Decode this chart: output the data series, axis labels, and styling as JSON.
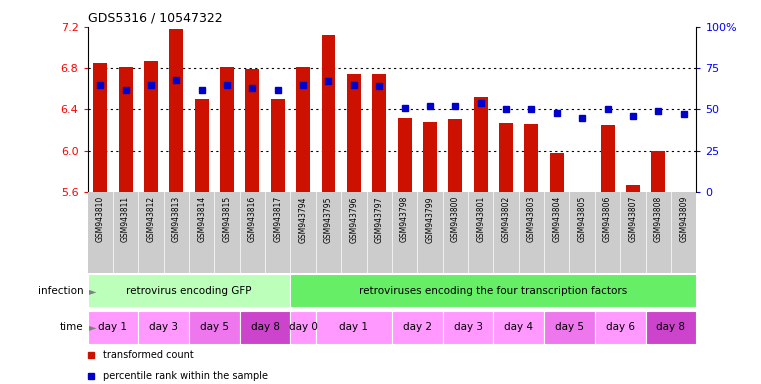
{
  "title": "GDS5316 / 10547322",
  "samples": [
    "GSM943810",
    "GSM943811",
    "GSM943812",
    "GSM943813",
    "GSM943814",
    "GSM943815",
    "GSM943816",
    "GSM943817",
    "GSM943794",
    "GSM943795",
    "GSM943796",
    "GSM943797",
    "GSM943798",
    "GSM943799",
    "GSM943800",
    "GSM943801",
    "GSM943802",
    "GSM943803",
    "GSM943804",
    "GSM943805",
    "GSM943806",
    "GSM943807",
    "GSM943808",
    "GSM943809"
  ],
  "transformed_count": [
    6.85,
    6.81,
    6.87,
    7.18,
    6.5,
    6.81,
    6.79,
    6.5,
    6.81,
    7.12,
    6.74,
    6.74,
    6.32,
    6.28,
    6.31,
    6.52,
    6.27,
    6.26,
    5.98,
    5.53,
    6.25,
    5.67,
    6.0,
    5.57
  ],
  "percentile_rank": [
    65,
    62,
    65,
    68,
    62,
    65,
    63,
    62,
    65,
    67,
    65,
    64,
    51,
    52,
    52,
    54,
    50,
    50,
    48,
    45,
    50,
    46,
    49,
    47
  ],
  "ylim_left": [
    5.6,
    7.2
  ],
  "ylim_right": [
    0,
    100
  ],
  "yticks_left": [
    5.6,
    6.0,
    6.4,
    6.8,
    7.2
  ],
  "yticks_right": [
    0,
    25,
    50,
    75,
    100
  ],
  "bar_color": "#cc1100",
  "dot_color": "#0000cc",
  "gridline_vals": [
    6.0,
    6.4,
    6.8
  ],
  "infection_groups": [
    {
      "label": "retrovirus encoding GFP",
      "start": 0,
      "end": 8,
      "color": "#bbffbb"
    },
    {
      "label": "retroviruses encoding the four transcription factors",
      "start": 8,
      "end": 24,
      "color": "#66ee66"
    }
  ],
  "time_groups": [
    {
      "label": "day 1",
      "start": 0,
      "end": 2,
      "color": "#ff99ff"
    },
    {
      "label": "day 3",
      "start": 2,
      "end": 4,
      "color": "#ff99ff"
    },
    {
      "label": "day 5",
      "start": 4,
      "end": 6,
      "color": "#ee77ee"
    },
    {
      "label": "day 8",
      "start": 6,
      "end": 8,
      "color": "#cc44cc"
    },
    {
      "label": "day 0",
      "start": 8,
      "end": 9,
      "color": "#ff99ff"
    },
    {
      "label": "day 1",
      "start": 9,
      "end": 12,
      "color": "#ff99ff"
    },
    {
      "label": "day 2",
      "start": 12,
      "end": 14,
      "color": "#ff99ff"
    },
    {
      "label": "day 3",
      "start": 14,
      "end": 16,
      "color": "#ff99ff"
    },
    {
      "label": "day 4",
      "start": 16,
      "end": 18,
      "color": "#ff99ff"
    },
    {
      "label": "day 5",
      "start": 18,
      "end": 20,
      "color": "#ee77ee"
    },
    {
      "label": "day 6",
      "start": 20,
      "end": 22,
      "color": "#ff99ff"
    },
    {
      "label": "day 8",
      "start": 22,
      "end": 24,
      "color": "#cc44cc"
    }
  ],
  "legend_items": [
    {
      "label": "transformed count",
      "color": "#cc1100"
    },
    {
      "label": "percentile rank within the sample",
      "color": "#0000cc"
    }
  ],
  "xtick_bg": "#cccccc",
  "left_label_color": "#888888"
}
